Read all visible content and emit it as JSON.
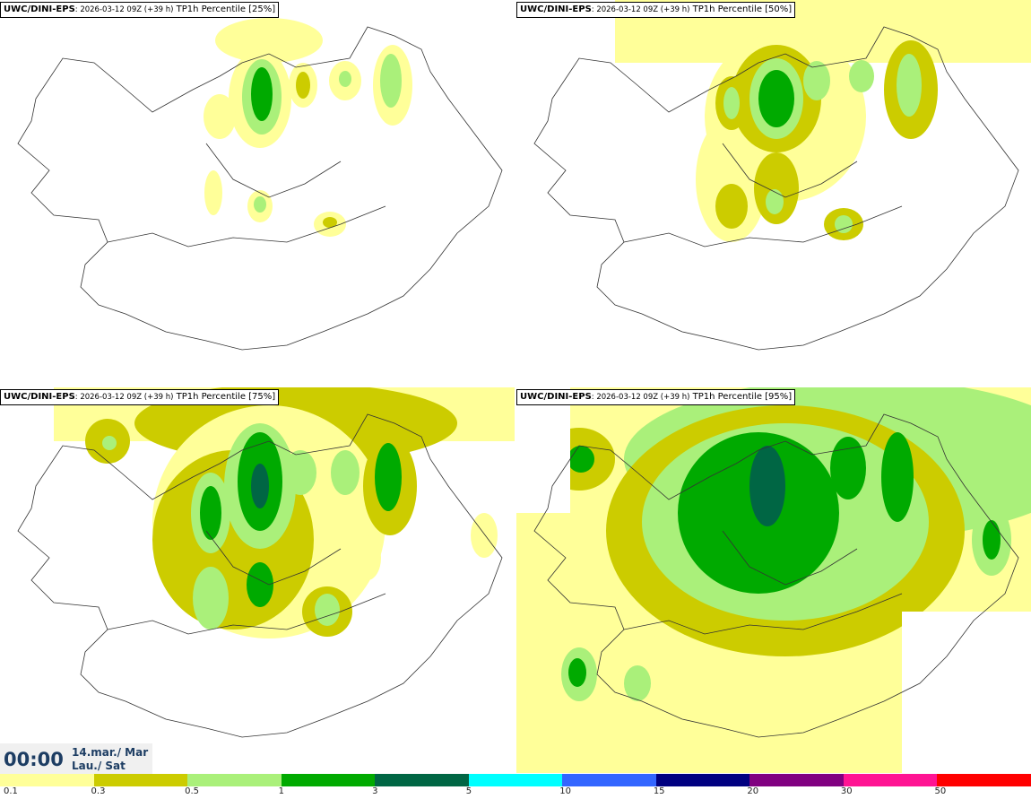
{
  "panels": [
    {
      "model": "UWC/DINI-EPS",
      "run": ": 2026-03-12 09Z (+39 h)",
      "field": " TP1h Percentile [25%]"
    },
    {
      "model": "UWC/DINI-EPS",
      "run": ": 2026-03-12 09Z (+39 h)",
      "field": " TP1h Percentile [50%]"
    },
    {
      "model": "UWC/DINI-EPS",
      "run": ": 2026-03-12 09Z (+39 h)",
      "field": " TP1h Percentile [75%]"
    },
    {
      "model": "UWC/DINI-EPS",
      "run": ": 2026-03-12 09Z (+39 h)",
      "field": " TP1h Percentile [95%]"
    }
  ],
  "valid_time": {
    "clock": "00:00",
    "date_line1": "14.mar./ Mar",
    "date_line2": "Lau./ Sat"
  },
  "legend": {
    "tick_labels": [
      "0.1",
      "0.3",
      "0.5",
      "1",
      "3",
      "5",
      "10",
      "15",
      "20",
      "30",
      "50"
    ],
    "colors": [
      "#ffff99",
      "#cccc00",
      "#aaf07a",
      "#00aa00",
      "#006644",
      "#00ffff",
      "#3366ff",
      "#000080",
      "#800080",
      "#ff1493",
      "#ff0000"
    ]
  },
  "fill_colors": {
    "level1": "#ffff99",
    "level2": "#cccc00",
    "level3": "#aaf07a",
    "level4": "#00aa00",
    "level5": "#006644"
  }
}
